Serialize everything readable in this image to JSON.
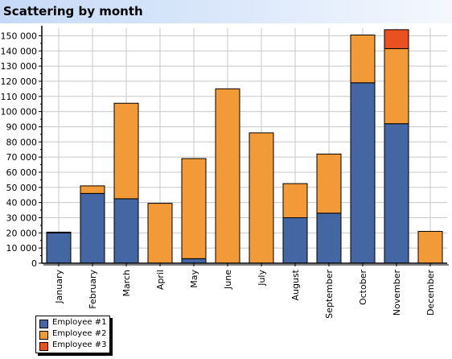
{
  "page": {
    "title": "Scattering by month"
  },
  "colors": {
    "series": [
      "#4466a3",
      "#f29a38",
      "#ea5120"
    ],
    "grid": "#c8c8c8",
    "axis": "#000000"
  },
  "chart_data": {
    "type": "bar",
    "stacked": true,
    "title": "Scattering by month",
    "xlabel": "",
    "ylabel": "",
    "ylim": [
      0,
      155000
    ],
    "ytick_step": 10000,
    "categories": [
      "January",
      "February",
      "March",
      "April",
      "May",
      "June",
      "July",
      "August",
      "September",
      "October",
      "November",
      "December"
    ],
    "series": [
      {
        "name": "Employee #1",
        "values": [
          20000,
          46000,
          42500,
          0,
          3000,
          0,
          0,
          30000,
          33000,
          119000,
          92000,
          0
        ]
      },
      {
        "name": "Employee #2",
        "values": [
          500,
          5000,
          63000,
          39500,
          66000,
          115000,
          86000,
          22500,
          39000,
          31500,
          49500,
          21000
        ]
      },
      {
        "name": "Employee #3",
        "values": [
          0,
          0,
          0,
          0,
          0,
          0,
          0,
          0,
          0,
          0,
          12500,
          0
        ]
      }
    ],
    "grid": true,
    "legend_position": "bottom-left"
  }
}
